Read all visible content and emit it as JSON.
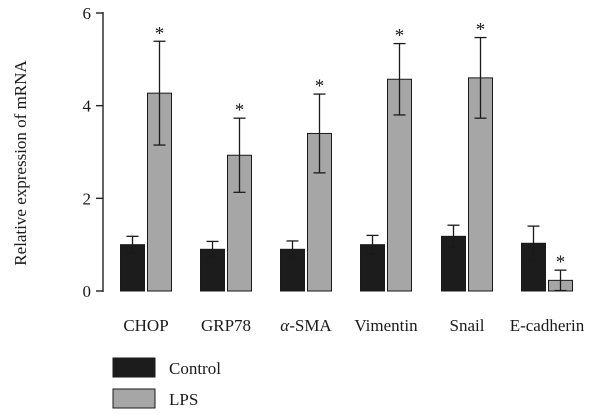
{
  "chart_data": {
    "type": "bar",
    "categories": [
      "CHOP",
      "GRP78",
      "α-SMA",
      "Vimentin",
      "Snail",
      "E-cadherin"
    ],
    "ylabel": "Relative expression of mRNA",
    "ylim": [
      0,
      6
    ],
    "yticks": [
      0,
      2,
      4,
      6
    ],
    "legend_position": "bottom-left",
    "series": [
      {
        "name": "Control",
        "color": "#1c1c1c",
        "values": [
          1.0,
          0.9,
          0.9,
          1.0,
          1.18,
          1.03
        ],
        "errors": [
          0.18,
          0.17,
          0.18,
          0.2,
          0.24,
          0.37
        ],
        "marks": [
          "",
          "",
          "",
          "",
          "",
          ""
        ]
      },
      {
        "name": "LPS",
        "color": "#a6a6a6",
        "values": [
          4.27,
          2.93,
          3.4,
          4.57,
          4.6,
          0.23
        ],
        "errors": [
          1.12,
          0.8,
          0.85,
          0.77,
          0.87,
          0.22
        ],
        "marks": [
          "*",
          "*",
          "*",
          "*",
          "*",
          "*"
        ]
      }
    ]
  }
}
